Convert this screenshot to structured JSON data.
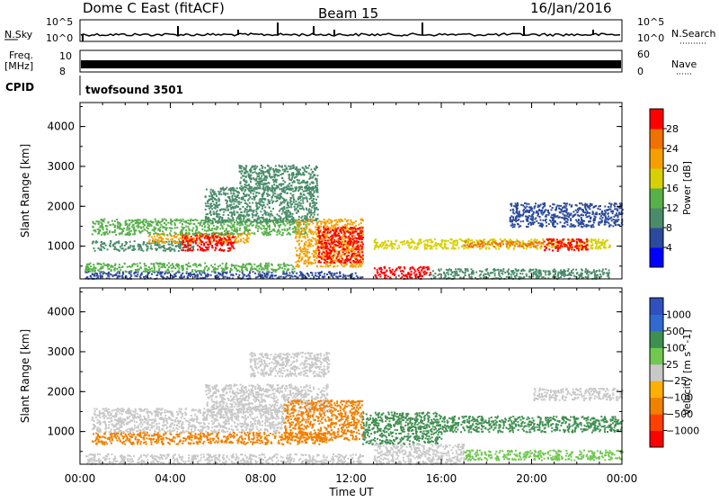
{
  "header": {
    "title": "Dome C East (fitACF)",
    "beam": "Beam 15",
    "date": "16/Jan/2016"
  },
  "top_strip": {
    "nsky_label": "N.Sky",
    "nsky_ticks": [
      "10^5",
      "10^0"
    ],
    "nsearch_label": "N.Search",
    "nsearch_ticks": [
      "10^5",
      "10^0"
    ],
    "freq_label": "Freq.",
    "freq_unit": "[MHz]",
    "freq_ticks": [
      "10",
      "8"
    ],
    "nave_label": "Nave",
    "nave_ticks": [
      "60",
      "0"
    ],
    "cpid_label": "CPID",
    "cpid_value": "twofsound 3501"
  },
  "colors": {
    "power_scale": [
      "#0000ff",
      "#2b4a9c",
      "#4a8c6a",
      "#58b04a",
      "#d8d000",
      "#f5a000",
      "#f07000",
      "#ff0000"
    ],
    "velocity_scale": [
      "#3050c0",
      "#2f6ad0",
      "#3f8f50",
      "#70c850",
      "#c8c8c8",
      "#ffb000",
      "#f08000",
      "#ff4000",
      "#ff0000"
    ]
  },
  "chart_data": [
    {
      "type": "heatmap",
      "quantity": "power",
      "ylabel": "Slant Range [km]",
      "xlabel": "Time UT",
      "x_ticks": [
        "00:00",
        "04:00",
        "08:00",
        "12:00",
        "16:00",
        "20:00",
        "00:00"
      ],
      "xlim_hours": [
        0,
        24
      ],
      "y_ticks": [
        1000,
        2000,
        3000,
        4000
      ],
      "ylim": [
        180,
        4600
      ],
      "colorbar": {
        "label": "Power [dB]",
        "ticks": [
          4,
          8,
          12,
          16,
          20,
          24,
          28
        ],
        "range": [
          0,
          32
        ]
      },
      "bands": [
        {
          "t0": 0.2,
          "t1": 12.5,
          "r0": 200,
          "r1": 380,
          "color": 1
        },
        {
          "t0": 0.2,
          "t1": 9.5,
          "r0": 380,
          "r1": 600,
          "color": 3
        },
        {
          "t0": 0.5,
          "t1": 5,
          "r0": 900,
          "r1": 1150,
          "color": 2
        },
        {
          "t0": 3,
          "t1": 7.5,
          "r0": 1100,
          "r1": 1350,
          "color": 5
        },
        {
          "t0": 4.5,
          "t1": 6.8,
          "r0": 900,
          "r1": 1350,
          "color": 7
        },
        {
          "t0": 0.5,
          "t1": 10,
          "r0": 1300,
          "r1": 1700,
          "color": 3
        },
        {
          "t0": 5.5,
          "t1": 10.5,
          "r0": 1600,
          "r1": 2500,
          "color": 2
        },
        {
          "t0": 7,
          "t1": 10.5,
          "r0": 2400,
          "r1": 3050,
          "color": 2
        },
        {
          "t0": 9.5,
          "t1": 12.5,
          "r0": 500,
          "r1": 1700,
          "color": 5
        },
        {
          "t0": 10.5,
          "t1": 12.5,
          "r0": 600,
          "r1": 1500,
          "color": 7
        },
        {
          "t0": 13,
          "t1": 15.5,
          "r0": 200,
          "r1": 500,
          "color": 7
        },
        {
          "t0": 15.5,
          "t1": 23.5,
          "r0": 200,
          "r1": 450,
          "color": 2
        },
        {
          "t0": 13,
          "t1": 23.5,
          "r0": 950,
          "r1": 1200,
          "color": 4
        },
        {
          "t0": 17,
          "t1": 20.5,
          "r0": 1000,
          "r1": 1150,
          "color": 6
        },
        {
          "t0": 20.5,
          "t1": 22.5,
          "r0": 900,
          "r1": 1200,
          "color": 7
        },
        {
          "t0": 19,
          "t1": 24,
          "r0": 1500,
          "r1": 2100,
          "color": 1
        }
      ]
    },
    {
      "type": "heatmap",
      "quantity": "velocity",
      "ylabel": "Slant Range [km]",
      "xlabel": "Time UT",
      "x_ticks": [
        "00:00",
        "04:00",
        "08:00",
        "12:00",
        "16:00",
        "20:00",
        "00:00"
      ],
      "xlim_hours": [
        0,
        24
      ],
      "y_ticks": [
        1000,
        2000,
        3000,
        4000
      ],
      "ylim": [
        180,
        4600
      ],
      "colorbar": {
        "label": "Velocity [m s^-1]",
        "ticks": [
          "1000",
          "500",
          "100",
          "25",
          "−25",
          "−100",
          "−500",
          "−1000"
        ]
      },
      "bands": [
        {
          "t0": 0.2,
          "t1": 12.5,
          "r0": 200,
          "r1": 450,
          "color": 4
        },
        {
          "t0": 0.5,
          "t1": 11,
          "r0": 700,
          "r1": 1000,
          "color": 6
        },
        {
          "t0": 0.5,
          "t1": 9,
          "r0": 1000,
          "r1": 1600,
          "color": 4
        },
        {
          "t0": 5.5,
          "t1": 11,
          "r0": 1500,
          "r1": 2200,
          "color": 4
        },
        {
          "t0": 7.5,
          "t1": 11,
          "r0": 2400,
          "r1": 3000,
          "color": 4
        },
        {
          "t0": 9,
          "t1": 12.5,
          "r0": 800,
          "r1": 1800,
          "color": 6
        },
        {
          "t0": 12.5,
          "t1": 16,
          "r0": 700,
          "r1": 1500,
          "color": 2
        },
        {
          "t0": 16,
          "t1": 24,
          "r0": 1000,
          "r1": 1400,
          "color": 2
        },
        {
          "t0": 13,
          "t1": 17,
          "r0": 200,
          "r1": 700,
          "color": 4
        },
        {
          "t0": 17,
          "t1": 24,
          "r0": 300,
          "r1": 550,
          "color": 3
        },
        {
          "t0": 20,
          "t1": 24,
          "r0": 1800,
          "r1": 2100,
          "color": 4
        }
      ]
    }
  ]
}
